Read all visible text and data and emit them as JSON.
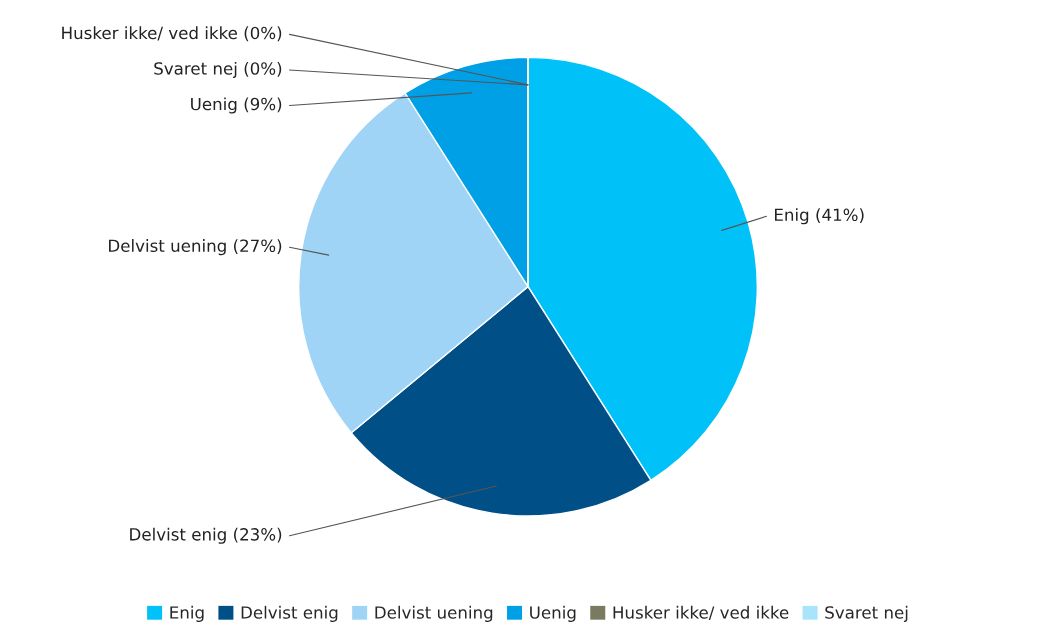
{
  "chart_data": {
    "type": "pie",
    "categories": [
      "Enig",
      "Delvist enig",
      "Delvist uening",
      "Uenig",
      "Husker ikke/ ved ikke",
      "Svaret nej"
    ],
    "values": [
      41,
      23,
      27,
      9,
      0,
      0
    ],
    "colors": [
      "#00c2f9",
      "#004f87",
      "#9fd4f6",
      "#00a0e6",
      "#7a7a60",
      "#a8e4fb"
    ],
    "value_labels": [
      "Enig (41%)",
      "Delvist enig (23%)",
      "Delvist uening (27%)",
      "Uenig (9%)",
      "Husker ikke/ ved ikke (0%)",
      "Svaret nej (0%)"
    ],
    "legend": "bottom"
  }
}
